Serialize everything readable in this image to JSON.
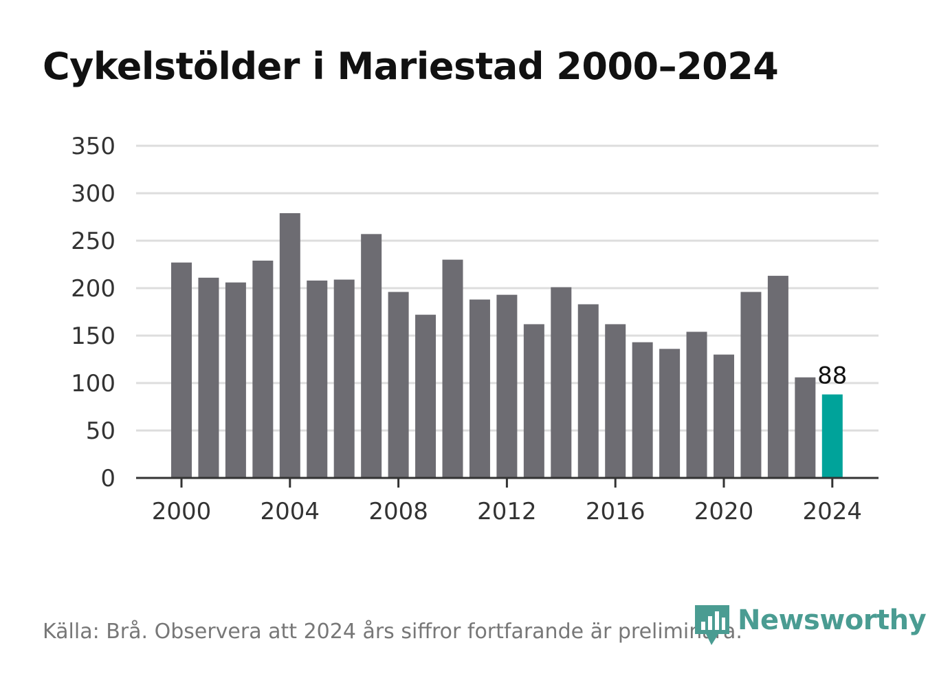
{
  "title": "Cykelstölder i Mariestad 2000–2024",
  "source": "Källa: Brå. Observera att 2024 års siffror fortfarande är preliminära.",
  "brand": {
    "name": "Newsworthy",
    "icon": "bar-chart-pin-icon",
    "color": "#4a9c92"
  },
  "colors": {
    "bar": "#6d6c72",
    "highlight": "#00a39a",
    "grid": "#dddddd",
    "axis": "#333333"
  },
  "chart_data": {
    "type": "bar",
    "title": "Cykelstölder i Mariestad 2000–2024",
    "xlabel": "",
    "ylabel": "",
    "ylim": [
      0,
      350
    ],
    "yticks": [
      0,
      50,
      100,
      150,
      200,
      250,
      300,
      350
    ],
    "xticks": [
      2000,
      2004,
      2008,
      2012,
      2016,
      2020,
      2024
    ],
    "grid": true,
    "categories": [
      2000,
      2001,
      2002,
      2003,
      2004,
      2005,
      2006,
      2007,
      2008,
      2009,
      2010,
      2011,
      2012,
      2013,
      2014,
      2015,
      2016,
      2017,
      2018,
      2019,
      2020,
      2021,
      2022,
      2023,
      2024
    ],
    "values": [
      227,
      211,
      206,
      229,
      279,
      208,
      209,
      257,
      196,
      172,
      230,
      188,
      193,
      162,
      201,
      183,
      162,
      143,
      136,
      154,
      130,
      196,
      213,
      106,
      88
    ],
    "highlight_index": 24,
    "annotations": [
      {
        "category": 2024,
        "text": "88"
      }
    ]
  }
}
